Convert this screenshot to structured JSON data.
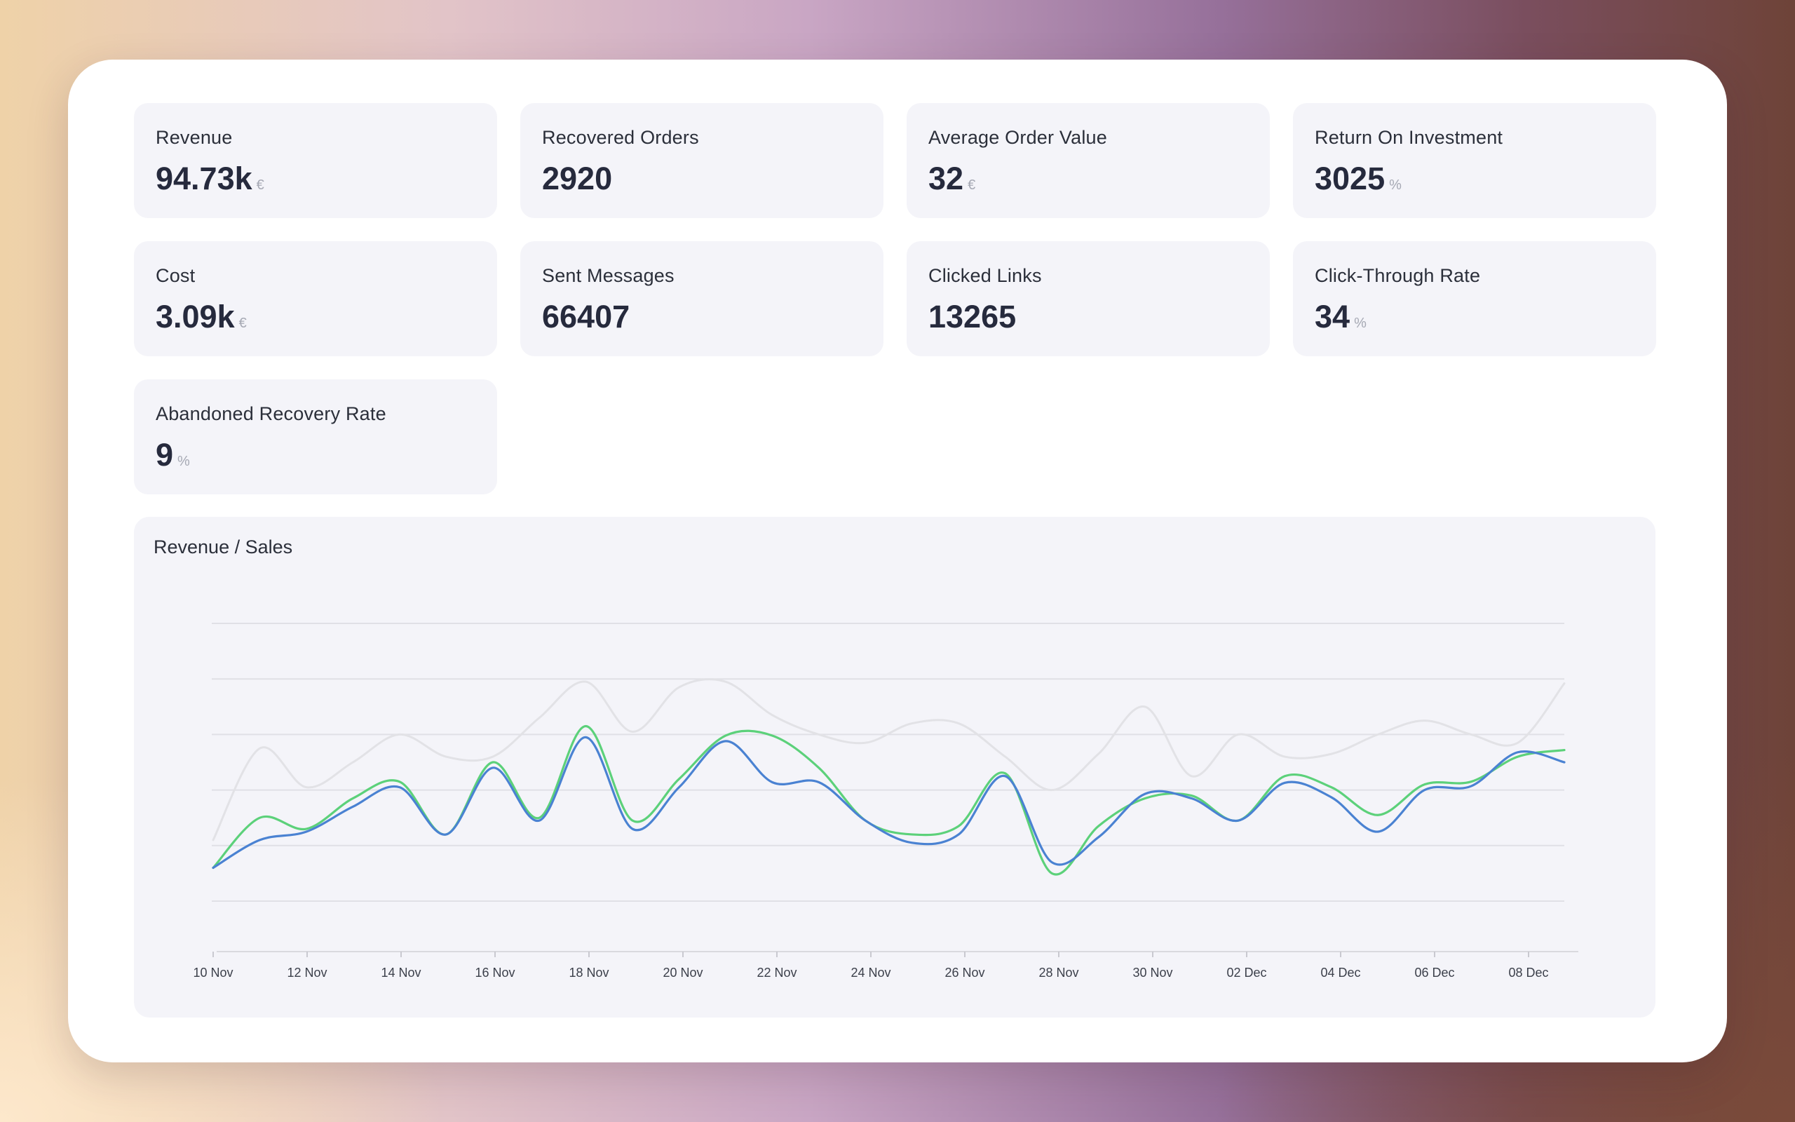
{
  "kpis": [
    {
      "label": "Revenue",
      "value": "94.73k",
      "unit": "€"
    },
    {
      "label": "Recovered Orders",
      "value": "2920",
      "unit": ""
    },
    {
      "label": "Average Order Value",
      "value": "32",
      "unit": "€"
    },
    {
      "label": "Return On Investment",
      "value": "3025",
      "unit": "%"
    },
    {
      "label": "Cost",
      "value": "3.09k",
      "unit": "€"
    },
    {
      "label": "Sent Messages",
      "value": "66407",
      "unit": ""
    },
    {
      "label": "Clicked Links",
      "value": "13265",
      "unit": ""
    },
    {
      "label": "Click-Through Rate",
      "value": "34",
      "unit": "%"
    },
    {
      "label": "Abandoned Recovery Rate",
      "value": "9",
      "unit": "%"
    }
  ],
  "chart": {
    "title": "Revenue / Sales"
  },
  "chart_data": {
    "type": "line",
    "title": "Revenue / Sales",
    "xlabel": "",
    "ylabel": "",
    "x_ticks": [
      "10 Nov",
      "12 Nov",
      "14 Nov",
      "16 Nov",
      "18 Nov",
      "20 Nov",
      "22 Nov",
      "24 Nov",
      "26 Nov",
      "28 Nov",
      "30 Nov",
      "02 Dec",
      "04 Dec",
      "06 Dec",
      "08 Dec"
    ],
    "x": [
      "10 Nov",
      "11 Nov",
      "12 Nov",
      "13 Nov",
      "14 Nov",
      "15 Nov",
      "16 Nov",
      "17 Nov",
      "18 Nov",
      "19 Nov",
      "20 Nov",
      "21 Nov",
      "22 Nov",
      "23 Nov",
      "24 Nov",
      "25 Nov",
      "26 Nov",
      "27 Nov",
      "28 Nov",
      "29 Nov",
      "30 Nov",
      "01 Dec",
      "02 Dec",
      "03 Dec",
      "04 Dec",
      "05 Dec",
      "06 Dec",
      "07 Dec",
      "08 Dec",
      "09 Dec"
    ],
    "ylim": [
      0,
      5
    ],
    "grid": true,
    "legend": "none",
    "series": [
      {
        "color": "#e2e2e6",
        "values": [
          1.1,
          2.75,
          2.05,
          2.5,
          3.0,
          2.6,
          2.6,
          3.3,
          3.95,
          3.05,
          3.85,
          3.95,
          3.35,
          3.0,
          2.85,
          3.2,
          3.2,
          2.6,
          2.0,
          2.65,
          3.5,
          2.25,
          3.0,
          2.6,
          2.65,
          3.0,
          3.25,
          3.0,
          2.85,
          3.92
        ]
      },
      {
        "color": "#5cd17a",
        "values": [
          0.6,
          1.5,
          1.3,
          1.85,
          2.15,
          1.2,
          2.5,
          1.5,
          3.15,
          1.45,
          2.2,
          2.98,
          2.98,
          2.4,
          1.45,
          1.2,
          1.35,
          2.3,
          0.5,
          1.35,
          1.85,
          1.9,
          1.45,
          2.25,
          2.05,
          1.55,
          2.1,
          2.15,
          2.6,
          2.72
        ]
      },
      {
        "color": "#4a82d2",
        "values": [
          0.6,
          1.1,
          1.25,
          1.7,
          2.05,
          1.2,
          2.4,
          1.45,
          2.95,
          1.3,
          2.05,
          2.88,
          2.14,
          2.14,
          1.45,
          1.05,
          1.2,
          2.25,
          0.7,
          1.15,
          1.93,
          1.85,
          1.45,
          2.13,
          1.87,
          1.25,
          2.0,
          2.07,
          2.68,
          2.5
        ]
      }
    ]
  },
  "colors": {
    "grey_series": "#e2e2e6",
    "green_series": "#5cd17a",
    "blue_series": "#4a82d2",
    "panel_bg": "#f4f4f9"
  }
}
